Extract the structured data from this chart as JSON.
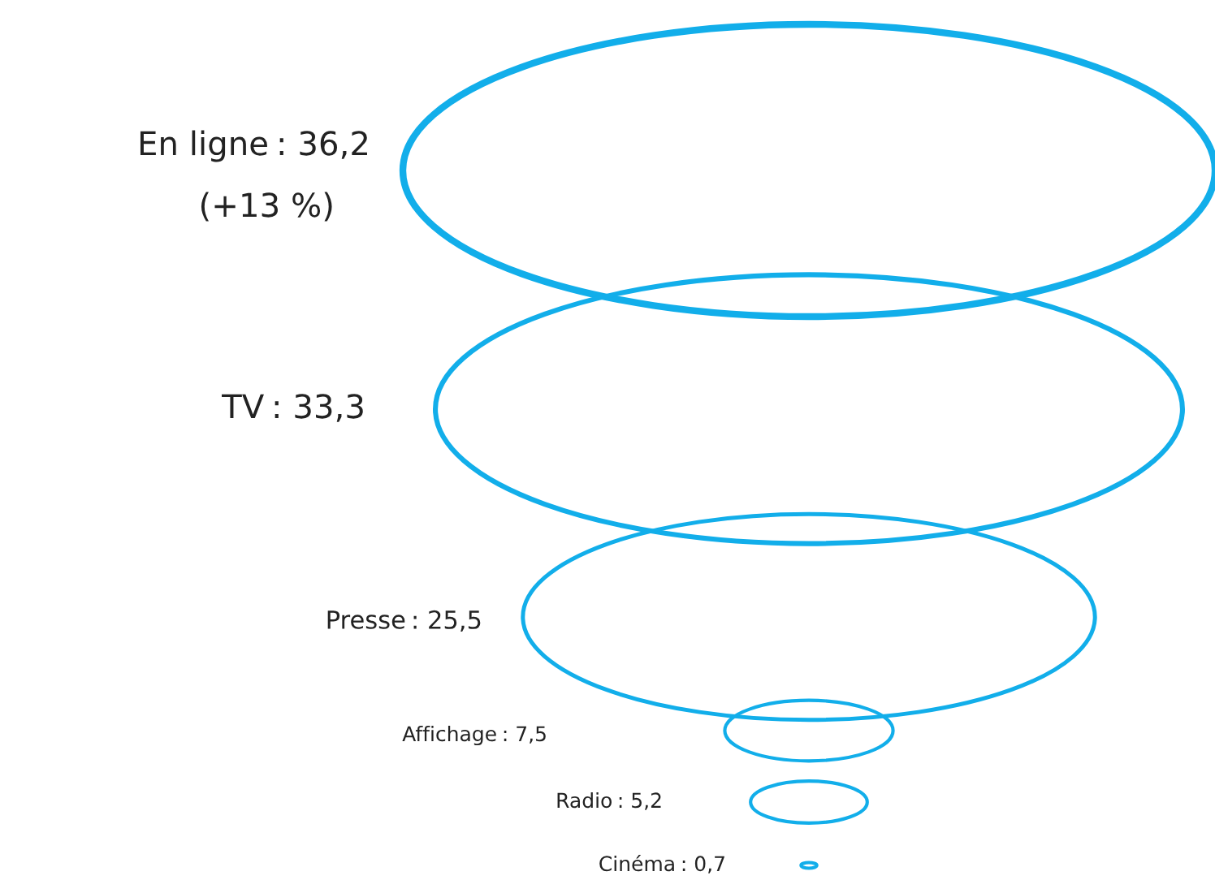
{
  "chart_data": {
    "type": "other",
    "categories": [
      "En ligne",
      "TV",
      "Presse",
      "Affichage",
      "Radio",
      "Cinéma"
    ],
    "values": [
      36.2,
      33.3,
      25.5,
      7.5,
      5.2,
      0.7
    ],
    "value_labels": [
      ": 36,2",
      ": 33,3",
      ": 25,5",
      ": 7,5",
      ": 5,2",
      ": 0,7"
    ],
    "color": "#12aeea",
    "annotations": [
      "(+13 %)"
    ]
  }
}
